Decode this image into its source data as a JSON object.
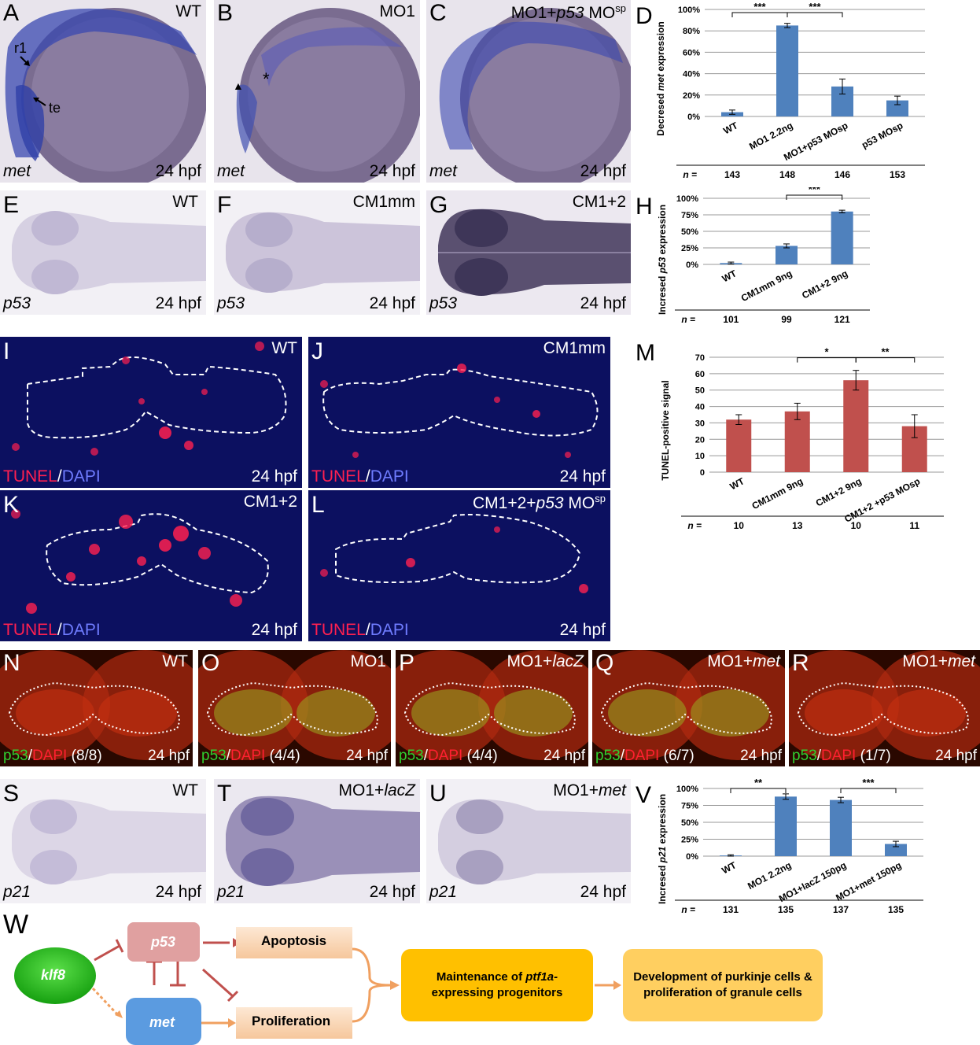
{
  "colors": {
    "bar_blue": "#4f81bd",
    "bar_red": "#c0504d",
    "tunel": "#ff2050",
    "dapi": "#4050e0",
    "p53_green": "#30d030",
    "ish_stain": "#3a48b0"
  },
  "rowA": {
    "A": {
      "letter": "A",
      "cond": "WT",
      "gene": "met",
      "stage": "24 hpf",
      "r1": "r1",
      "te": "te"
    },
    "B": {
      "letter": "B",
      "cond": "MO1",
      "gene": "met",
      "stage": "24 hpf",
      "arrowhead": "▲",
      "asterisk": "*"
    },
    "C": {
      "letter": "C",
      "cond_pre": "MO1+",
      "cond_it": "p53",
      "cond_mid": " MO",
      "cond_sup": "sp",
      "gene": "met",
      "stage": "24 hpf"
    }
  },
  "rowE": {
    "E": {
      "letter": "E",
      "cond": "WT",
      "gene": "p53",
      "stage": "24 hpf"
    },
    "F": {
      "letter": "F",
      "cond": "CM1mm",
      "gene": "p53",
      "stage": "24 hpf"
    },
    "G": {
      "letter": "G",
      "cond": "CM1+2",
      "gene": "p53",
      "stage": "24 hpf"
    }
  },
  "tunel": {
    "I": {
      "letter": "I",
      "cond": "WT",
      "stage": "24 hpf"
    },
    "J": {
      "letter": "J",
      "cond": "CM1mm",
      "stage": "24 hpf"
    },
    "K": {
      "letter": "K",
      "cond": "CM1+2",
      "stage": "24 hpf"
    },
    "L": {
      "letter": "L",
      "cond_pre": "CM1+2+",
      "cond_it": "p53",
      "cond_mid": " MO",
      "cond_sup": "sp",
      "stage": "24 hpf"
    },
    "tunel": "TUNEL",
    "slash": "/",
    "dapi": "DAPI"
  },
  "p53stain": {
    "N": {
      "letter": "N",
      "cond": "WT",
      "count": "(8/8)"
    },
    "O": {
      "letter": "O",
      "cond": "MO1",
      "count": "(4/4)"
    },
    "P": {
      "letter": "P",
      "cond_pre": "MO1+",
      "cond_it": "lacZ",
      "count": "(4/4)"
    },
    "Q": {
      "letter": "Q",
      "cond_pre": "MO1+",
      "cond_it": "met",
      "count": "(6/7)"
    },
    "R": {
      "letter": "R",
      "cond_pre": "MO1+",
      "cond_it": "met",
      "count": "(1/7)"
    },
    "p53": "p53",
    "slash": "/",
    "dapi": "DAPI",
    "stage": "24 hpf"
  },
  "rowS": {
    "S": {
      "letter": "S",
      "cond": "WT",
      "gene": "p21",
      "stage": "24 hpf"
    },
    "T": {
      "letter": "T",
      "cond_pre": "MO1+",
      "cond_it": "lacZ",
      "gene": "p21",
      "stage": "24 hpf"
    },
    "U": {
      "letter": "U",
      "cond_pre": "MO1+",
      "cond_it": "met",
      "gene": "p21",
      "stage": "24 hpf"
    }
  },
  "diagram": {
    "letter": "W",
    "klf8": "klf8",
    "p53": "p53",
    "met": "met",
    "apoptosis": "Apoptosis",
    "proliferation": "Proliferation",
    "maint_1_pre": "Maintenance of ",
    "maint_1_it": "ptf1a-",
    "maint_2": "expressing progenitors",
    "dev_1": "Development of purkinje cells &",
    "dev_2": "proliferation of granule cells"
  },
  "chart_data": [
    {
      "panel": "D",
      "type": "bar",
      "ylabel_pre": "Decresed ",
      "ylabel_it": "met",
      "ylabel_post": " expression",
      "categories": [
        "WT",
        "MO1 2.2ng",
        "MO1+p53 MOsp",
        "p53 MOsp"
      ],
      "values": [
        4,
        85,
        28,
        15
      ],
      "errors": [
        2,
        2,
        7,
        4
      ],
      "ylim": [
        0,
        100
      ],
      "yticks": [
        "0%",
        "20%",
        "40%",
        "60%",
        "80%",
        "100%"
      ],
      "n_label": "n =",
      "n": [
        "143",
        "148",
        "146",
        "153"
      ],
      "sig": [
        {
          "from": 0,
          "to": 1,
          "label": "***"
        },
        {
          "from": 1,
          "to": 2,
          "label": "***"
        }
      ]
    },
    {
      "panel": "H",
      "type": "bar",
      "ylabel_pre": "Incresed ",
      "ylabel_it": "p53",
      "ylabel_post": " expression",
      "categories": [
        "WT",
        "CM1mm 9ng",
        "CM1+2 9ng"
      ],
      "values": [
        2,
        28,
        80
      ],
      "errors": [
        1.5,
        3,
        2
      ],
      "ylim": [
        0,
        100
      ],
      "yticks": [
        "0%",
        "25%",
        "50%",
        "75%",
        "100%"
      ],
      "n_label": "n =",
      "n": [
        "101",
        "99",
        "121"
      ],
      "sig": [
        {
          "from": 1,
          "to": 2,
          "label": "***"
        }
      ]
    },
    {
      "panel": "M",
      "type": "bar",
      "ylabel": "TUNEL-positive signal",
      "categories": [
        "WT",
        "CM1mm 9ng",
        "CM1+2 9ng",
        "CM1+2 +p53 MOsp"
      ],
      "values": [
        32,
        37,
        56,
        28
      ],
      "errors": [
        3,
        5,
        6,
        7
      ],
      "ylim": [
        0,
        70
      ],
      "yticks": [
        "0",
        "10",
        "20",
        "30",
        "40",
        "50",
        "60",
        "70"
      ],
      "n_label": "n =",
      "n": [
        "10",
        "13",
        "10",
        "11"
      ],
      "sig": [
        {
          "from": 1,
          "to": 2,
          "label": "*"
        },
        {
          "from": 2,
          "to": 3,
          "label": "**"
        }
      ]
    },
    {
      "panel": "V",
      "type": "bar",
      "ylabel_pre": "Incresed ",
      "ylabel_it": "p21",
      "ylabel_post": " expression",
      "categories": [
        "WT",
        "MO1 2.2ng",
        "MO1+lacZ 150pg",
        "MO1+met 150pg"
      ],
      "values": [
        1,
        88,
        83,
        18
      ],
      "errors": [
        1,
        4,
        4,
        4
      ],
      "ylim": [
        0,
        100
      ],
      "yticks": [
        "0%",
        "25%",
        "50%",
        "75%",
        "100%"
      ],
      "n_label": "n =",
      "n": [
        "131",
        "135",
        "137",
        "135"
      ],
      "sig": [
        {
          "from": 0,
          "to": 1,
          "label": "**"
        },
        {
          "from": 2,
          "to": 3,
          "label": "***"
        }
      ]
    }
  ]
}
